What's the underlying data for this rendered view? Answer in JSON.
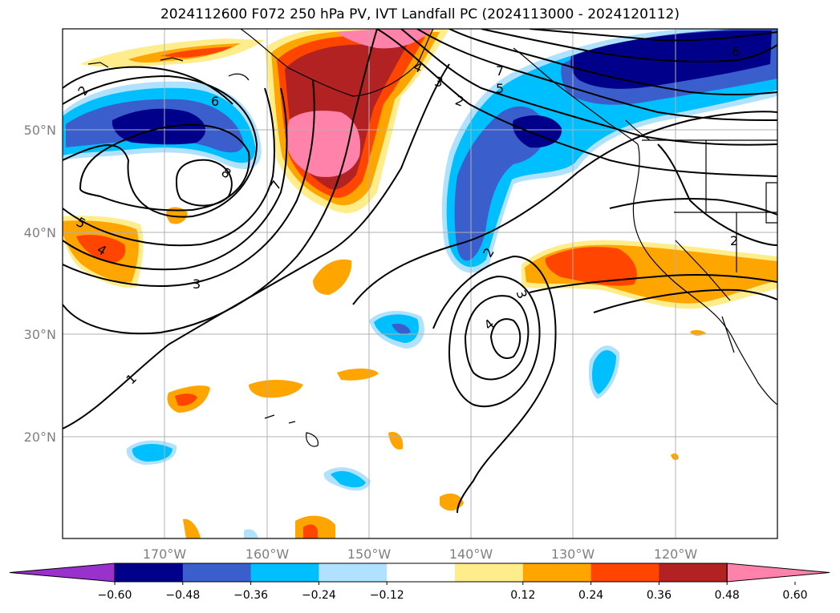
{
  "title": "2024112600 F072 250 hPa PV, IVT Landfall PC (2024113000 - 2024120112)",
  "map": {
    "lon_ticks": [
      "170°W",
      "160°W",
      "150°W",
      "140°W",
      "130°W",
      "120°W"
    ],
    "lat_ticks": [
      "50°N",
      "40°N",
      "30°N",
      "20°N"
    ],
    "contour_labels": [
      "2",
      "6",
      "8",
      "5",
      "4",
      "7",
      "3",
      "1",
      "4",
      "3",
      "2",
      "7",
      "5",
      "6",
      "2",
      "3",
      "4",
      "2"
    ]
  },
  "colorbar": {
    "ticks": [
      "−0.60",
      "−0.48",
      "−0.36",
      "−0.24",
      "−0.12",
      "0.12",
      "0.24",
      "0.36",
      "0.48",
      "0.60"
    ],
    "colors": [
      "#9932cc",
      "#00008b",
      "#3a5fcd",
      "#00bfff",
      "#b0e2ff",
      "#ffffff",
      "#ffec8b",
      "#ffa500",
      "#ff4500",
      "#b22222",
      "#ff82ab"
    ]
  }
}
